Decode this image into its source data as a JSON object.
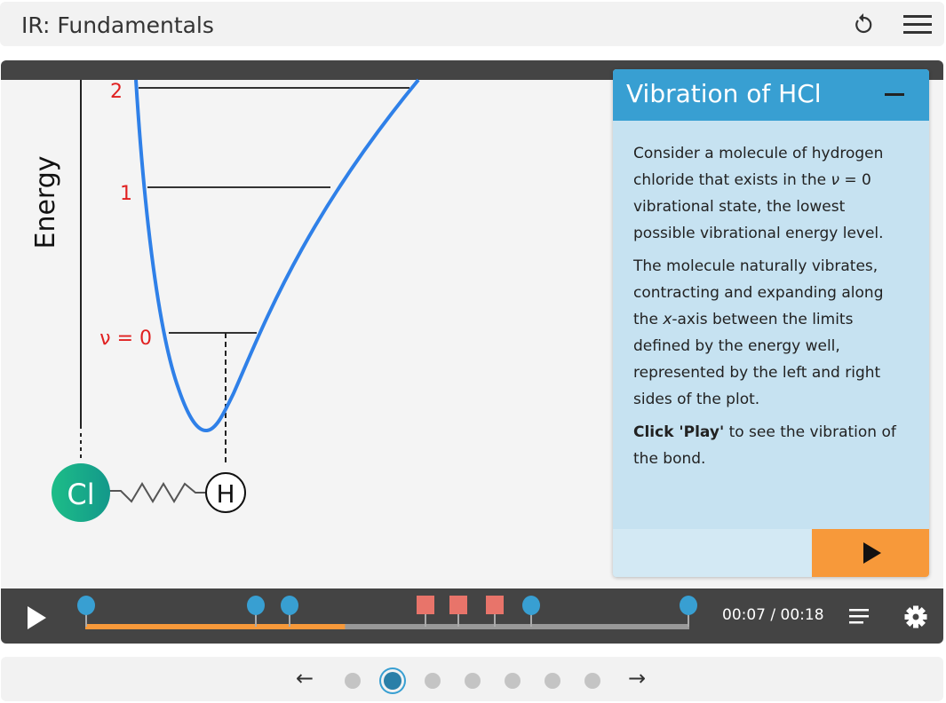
{
  "header": {
    "title": "IR: Fundamentals",
    "icons": [
      "reset-icon",
      "menu-icon"
    ]
  },
  "diagram": {
    "axis_label": "Energy",
    "levels": [
      "2",
      "1",
      "ν = 0"
    ],
    "atoms": {
      "left": "Cl",
      "right": "H"
    },
    "colors": {
      "curve": "#2f80e8",
      "levels_text": "#e02020",
      "chlorine": "#1ab486"
    }
  },
  "panel": {
    "title": "Vibration of HCl",
    "p1_a": "Consider a molecule of hydrogen chloride that exists in the ",
    "p1_v": "ν",
    "p1_b": " = 0 vibrational state, the lowest possible vibrational energy level.",
    "p2_a": "The molecule naturally vibrates, contracting and expanding along the ",
    "p2_x": "x",
    "p2_b": "-axis between the limits defined by the energy well, represented by the left and right sides of the plot.",
    "p3_bold": "Click 'Play'",
    "p3_rest": " to see the vibration of the bond."
  },
  "controls": {
    "time": "00:07 / 00:18",
    "progress": 0.43,
    "colors": {
      "progress": "#f7993a",
      "marker_circle": "#389fd2",
      "marker_square": "#e8746a"
    }
  },
  "nav": {
    "pages": 7,
    "current": 2
  }
}
